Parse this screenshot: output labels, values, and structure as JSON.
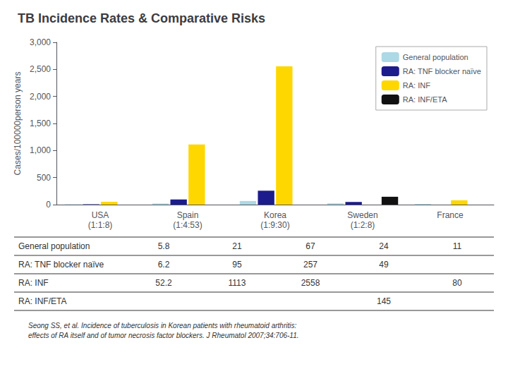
{
  "chart_data": {
    "type": "bar",
    "title": "TB Incidence Rates & Comparative Risks",
    "ylabel": "Cases/100000person years",
    "categories": [
      "USA\n(1:1:8)",
      "Spain\n(1:4:53)",
      "Korea\n(1:9:30)",
      "Sweden\n(1:2:8)",
      "France"
    ],
    "series": [
      {
        "name": "General population",
        "color": "#add8e6",
        "values": [
          5.8,
          21,
          67,
          24,
          11
        ]
      },
      {
        "name": "RA: TNF blocker naïve",
        "color": "#1c1c8c",
        "values": [
          6.2,
          95,
          257,
          49,
          null
        ]
      },
      {
        "name": "RA: INF",
        "color": "#ffd700",
        "values": [
          52.2,
          1113,
          2558,
          null,
          80
        ]
      },
      {
        "name": "RA: INF/ETA",
        "color": "#111111",
        "values": [
          null,
          null,
          null,
          145,
          null
        ]
      }
    ],
    "ylim": [
      0,
      3000
    ],
    "yticks": [
      0,
      500,
      1000,
      1500,
      2000,
      2500,
      3000
    ],
    "grid": false,
    "legend": "upper right",
    "annotations": [
      "Seong SS, et al. Incidence of tuberculosis in Korean patients with rheumatoid arthritis:\neffects of RA itself and of tumor necrosis factor blockers. J Rheumatol 2007;34:706-11."
    ]
  }
}
